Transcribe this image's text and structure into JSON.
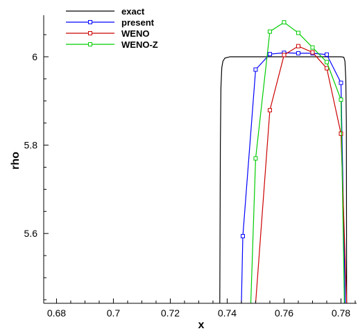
{
  "chart_data": {
    "type": "line",
    "xlabel": "x",
    "ylabel": "rho",
    "xlim": [
      0.6755,
      0.7855
    ],
    "ylim": [
      5.442,
      6.094
    ],
    "xticks": [
      0.68,
      0.7,
      0.72,
      0.74,
      0.76,
      0.78
    ],
    "xtick_labels": [
      "0.68",
      "0.7",
      "0.72",
      "0.74",
      "0.76",
      "0.78"
    ],
    "yticks": [
      5.6,
      5.8,
      6.0
    ],
    "ytick_labels": [
      "5.6",
      "5.8",
      "6"
    ],
    "grid": false,
    "legend_position": "top-left",
    "series": [
      {
        "name": "exact",
        "color": "#000000",
        "marker": "none",
        "x": [
          0.7374,
          0.7376,
          0.7378,
          0.7381,
          0.7385,
          0.7392,
          0.741,
          0.745,
          0.75,
          0.76,
          0.77,
          0.78,
          0.781,
          0.7814,
          0.7817,
          0.7819,
          0.782
        ],
        "y": [
          5.442,
          5.8,
          5.93,
          5.975,
          5.99,
          5.997,
          6.0,
          6.0,
          6.0,
          6.0,
          6.0,
          6.0,
          5.999,
          5.99,
          5.95,
          5.85,
          5.442
        ]
      },
      {
        "name": "present",
        "color": "#0000ff",
        "marker": "square",
        "x": [
          0.745,
          0.7455,
          0.75,
          0.755,
          0.76,
          0.765,
          0.77,
          0.775,
          0.78,
          0.7815
        ],
        "y": [
          5.442,
          5.594,
          5.971,
          6.006,
          6.009,
          6.008,
          6.008,
          6.005,
          5.941,
          5.442
        ],
        "markers": [
          [
            0.7455,
            5.594
          ],
          [
            0.75,
            5.971
          ],
          [
            0.755,
            6.006
          ],
          [
            0.76,
            6.009
          ],
          [
            0.765,
            6.008
          ],
          [
            0.77,
            6.008
          ],
          [
            0.775,
            6.005
          ],
          [
            0.78,
            5.941
          ]
        ]
      },
      {
        "name": "WENO",
        "color": "#cc0000",
        "marker": "square",
        "x": [
          0.75,
          0.755,
          0.76,
          0.765,
          0.77,
          0.775,
          0.78,
          0.782
        ],
        "y": [
          5.442,
          5.879,
          6.004,
          6.024,
          6.01,
          5.974,
          5.826,
          5.442
        ],
        "markers": [
          [
            0.755,
            5.879
          ],
          [
            0.76,
            6.004
          ],
          [
            0.765,
            6.024
          ],
          [
            0.77,
            6.01
          ],
          [
            0.775,
            5.974
          ],
          [
            0.78,
            5.826
          ]
        ]
      },
      {
        "name": "WENO-Z",
        "color": "#00cc00",
        "marker": "square",
        "x": [
          0.7483,
          0.75,
          0.755,
          0.76,
          0.765,
          0.77,
          0.775,
          0.78,
          0.7812
        ],
        "y": [
          5.442,
          5.77,
          6.057,
          6.078,
          6.054,
          6.021,
          5.988,
          5.903,
          5.442
        ],
        "markers": [
          [
            0.75,
            5.77
          ],
          [
            0.755,
            6.057
          ],
          [
            0.76,
            6.078
          ],
          [
            0.765,
            6.054
          ],
          [
            0.77,
            6.021
          ],
          [
            0.775,
            5.988
          ],
          [
            0.78,
            5.903
          ]
        ]
      }
    ]
  }
}
